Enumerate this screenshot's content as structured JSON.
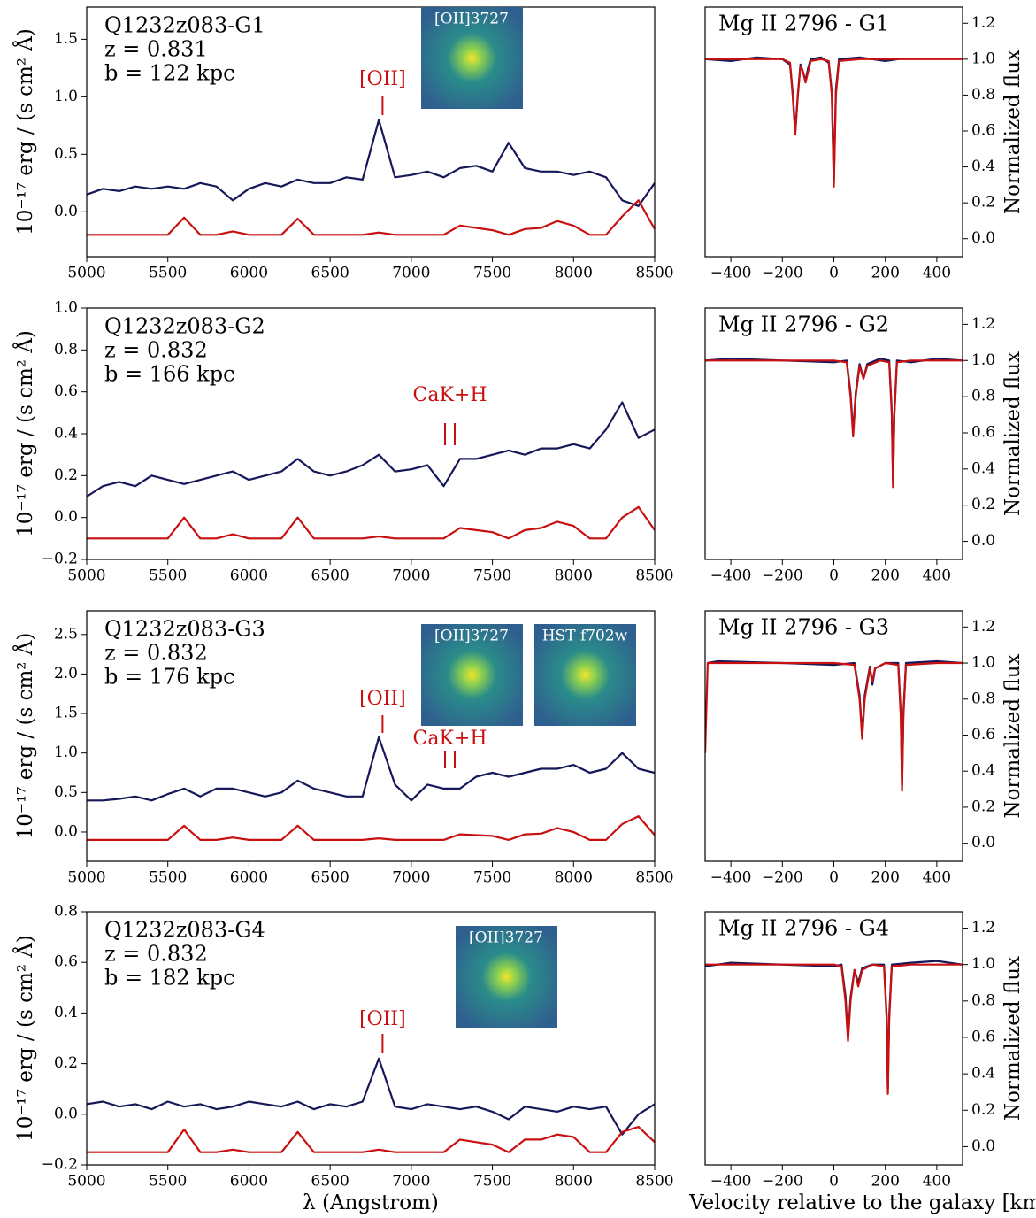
{
  "chart_data": [
    {
      "type": "line",
      "info": [
        "Q1232z083-G1",
        "z = 0.831",
        "b = 122 kpc"
      ],
      "y_label": "10⁻¹⁷ erg / (s cm² Å)",
      "annotations": [
        {
          "text": "[OII]",
          "x": [
            6823
          ]
        }
      ],
      "thumbnails": [
        {
          "label": "[OII]3727"
        }
      ],
      "x": [
        5000,
        5100,
        5200,
        5300,
        5400,
        5500,
        5600,
        5700,
        5800,
        5900,
        6000,
        6100,
        6200,
        6300,
        6400,
        6500,
        6600,
        6700,
        6800,
        6900,
        7000,
        7100,
        7200,
        7300,
        7400,
        7500,
        7600,
        7700,
        7800,
        7900,
        8000,
        8100,
        8200,
        8300,
        8400,
        8500
      ],
      "series": [
        {
          "color": "#16185a",
          "values": [
            0.15,
            0.2,
            0.18,
            0.22,
            0.2,
            0.22,
            0.2,
            0.25,
            0.22,
            0.1,
            0.2,
            0.25,
            0.22,
            0.28,
            0.25,
            0.25,
            0.3,
            0.28,
            0.8,
            0.3,
            0.32,
            0.35,
            0.3,
            0.38,
            0.4,
            0.35,
            0.6,
            0.38,
            0.35,
            0.35,
            0.32,
            0.35,
            0.3,
            0.1,
            0.05,
            0.25
          ]
        },
        {
          "color": "#c81010",
          "values": [
            -0.2,
            -0.2,
            -0.2,
            -0.2,
            -0.2,
            -0.2,
            -0.05,
            -0.2,
            -0.2,
            -0.17,
            -0.2,
            -0.2,
            -0.2,
            -0.06,
            -0.2,
            -0.2,
            -0.2,
            -0.2,
            -0.18,
            -0.2,
            -0.2,
            -0.2,
            -0.2,
            -0.12,
            -0.14,
            -0.16,
            -0.2,
            -0.15,
            -0.14,
            -0.08,
            -0.12,
            -0.2,
            -0.2,
            -0.04,
            0.1,
            -0.15
          ]
        }
      ],
      "xlim": [
        5000,
        8500
      ],
      "ylim": [
        -0.39,
        1.78
      ],
      "xticks": [
        5000,
        5500,
        6000,
        6500,
        7000,
        7500,
        8000,
        8500
      ],
      "yticks": [
        {
          "value": 0,
          "label": "0.0"
        },
        0.5,
        {
          "value": 1,
          "label": "1.0"
        },
        1.5
      ]
    },
    {
      "type": "line",
      "info": [
        "Q1232z083-G2",
        "z = 0.832",
        "b = 166 kpc"
      ],
      "y_label": "10⁻¹⁷ erg / (s cm² Å)",
      "annotations": [
        {
          "text": "CaK+H",
          "x": [
            7208,
            7268
          ]
        }
      ],
      "x": [
        5000,
        5100,
        5200,
        5300,
        5400,
        5500,
        5600,
        5700,
        5800,
        5900,
        6000,
        6100,
        6200,
        6300,
        6400,
        6500,
        6600,
        6700,
        6800,
        6900,
        7000,
        7100,
        7200,
        7300,
        7400,
        7500,
        7600,
        7700,
        7800,
        7900,
        8000,
        8100,
        8200,
        8300,
        8400,
        8500
      ],
      "series": [
        {
          "color": "#16185a",
          "values": [
            0.1,
            0.15,
            0.17,
            0.15,
            0.2,
            0.18,
            0.16,
            0.18,
            0.2,
            0.22,
            0.18,
            0.2,
            0.22,
            0.28,
            0.22,
            0.2,
            0.22,
            0.25,
            0.3,
            0.22,
            0.23,
            0.25,
            0.15,
            0.28,
            0.28,
            0.3,
            0.32,
            0.3,
            0.33,
            0.33,
            0.35,
            0.33,
            0.42,
            0.55,
            0.38,
            0.42
          ]
        },
        {
          "color": "#c81010",
          "values": [
            -0.1,
            -0.1,
            -0.1,
            -0.1,
            -0.1,
            -0.1,
            0.0,
            -0.1,
            -0.1,
            -0.08,
            -0.1,
            -0.1,
            -0.1,
            0.0,
            -0.1,
            -0.1,
            -0.1,
            -0.1,
            -0.09,
            -0.1,
            -0.1,
            -0.1,
            -0.1,
            -0.05,
            -0.06,
            -0.07,
            -0.1,
            -0.06,
            -0.05,
            -0.02,
            -0.04,
            -0.1,
            -0.1,
            0.0,
            0.05,
            -0.06
          ]
        }
      ],
      "xlim": [
        5000,
        8500
      ],
      "ylim": [
        -0.2,
        1.0
      ],
      "xticks": [
        5000,
        5500,
        6000,
        6500,
        7000,
        7500,
        8000,
        8500
      ],
      "yticks": [
        {
          "value": -0.2,
          "label": "−0.2"
        },
        {
          "value": 0,
          "label": "0.0"
        },
        0.2,
        0.4,
        0.6,
        0.8,
        {
          "value": 1,
          "label": "1.0"
        }
      ]
    },
    {
      "type": "line",
      "info": [
        "Q1232z083-G3",
        "z = 0.832",
        "b = 176 kpc"
      ],
      "y_label": "10⁻¹⁷ erg / (s cm² Å)",
      "annotations": [
        {
          "text": "[OII]",
          "x": [
            6823
          ]
        },
        {
          "text": "CaK+H",
          "x": [
            7208,
            7268
          ]
        }
      ],
      "thumbnails": [
        {
          "label": "[OII]3727"
        },
        {
          "label": "HST f702w"
        }
      ],
      "x": [
        5000,
        5100,
        5200,
        5300,
        5400,
        5500,
        5600,
        5700,
        5800,
        5900,
        6000,
        6100,
        6200,
        6300,
        6400,
        6500,
        6600,
        6700,
        6800,
        6900,
        7000,
        7100,
        7200,
        7300,
        7400,
        7500,
        7600,
        7700,
        7800,
        7900,
        8000,
        8100,
        8200,
        8300,
        8400,
        8500
      ],
      "series": [
        {
          "color": "#16185a",
          "values": [
            0.4,
            0.4,
            0.42,
            0.45,
            0.4,
            0.48,
            0.55,
            0.45,
            0.55,
            0.55,
            0.5,
            0.45,
            0.5,
            0.65,
            0.55,
            0.5,
            0.45,
            0.45,
            1.2,
            0.6,
            0.4,
            0.6,
            0.55,
            0.55,
            0.7,
            0.75,
            0.7,
            0.75,
            0.8,
            0.8,
            0.85,
            0.75,
            0.8,
            1.0,
            0.8,
            0.75
          ]
        },
        {
          "color": "#c81010",
          "values": [
            -0.1,
            -0.1,
            -0.1,
            -0.1,
            -0.1,
            -0.1,
            0.08,
            -0.1,
            -0.1,
            -0.07,
            -0.1,
            -0.1,
            -0.1,
            0.08,
            -0.1,
            -0.1,
            -0.1,
            -0.1,
            -0.08,
            -0.1,
            -0.1,
            -0.1,
            -0.1,
            -0.03,
            -0.04,
            -0.05,
            -0.1,
            -0.03,
            -0.02,
            0.05,
            0.0,
            -0.1,
            -0.1,
            0.1,
            0.2,
            -0.04
          ]
        }
      ],
      "xlim": [
        5000,
        8500
      ],
      "ylim": [
        -0.37,
        2.8
      ],
      "xticks": [
        5000,
        5500,
        6000,
        6500,
        7000,
        7500,
        8000,
        8500
      ],
      "yticks": [
        {
          "value": 0,
          "label": "0.0"
        },
        0.5,
        {
          "value": 1,
          "label": "1.0"
        },
        1.5,
        {
          "value": 2,
          "label": "2.0"
        },
        2.5
      ]
    },
    {
      "type": "line",
      "info": [
        "Q1232z083-G4",
        "z = 0.832",
        "b = 182 kpc"
      ],
      "y_label": "10⁻¹⁷ erg / (s cm² Å)",
      "x_label": "λ (Angstrom)",
      "annotations": [
        {
          "text": "[OII]",
          "x": [
            6823
          ]
        }
      ],
      "thumbnails": [
        {
          "label": "[OII]3727"
        }
      ],
      "x": [
        5000,
        5100,
        5200,
        5300,
        5400,
        5500,
        5600,
        5700,
        5800,
        5900,
        6000,
        6100,
        6200,
        6300,
        6400,
        6500,
        6600,
        6700,
        6800,
        6900,
        7000,
        7100,
        7200,
        7300,
        7400,
        7500,
        7600,
        7700,
        7800,
        7900,
        8000,
        8100,
        8200,
        8300,
        8400,
        8500
      ],
      "series": [
        {
          "color": "#16185a",
          "values": [
            0.04,
            0.05,
            0.03,
            0.04,
            0.02,
            0.05,
            0.03,
            0.04,
            0.02,
            0.03,
            0.05,
            0.04,
            0.03,
            0.05,
            0.02,
            0.04,
            0.03,
            0.05,
            0.22,
            0.03,
            0.02,
            0.04,
            0.03,
            0.02,
            0.03,
            0.01,
            -0.02,
            0.03,
            0.02,
            0.01,
            0.03,
            0.02,
            0.03,
            -0.08,
            0.0,
            0.04
          ]
        },
        {
          "color": "#c81010",
          "values": [
            -0.15,
            -0.15,
            -0.15,
            -0.15,
            -0.15,
            -0.15,
            -0.06,
            -0.15,
            -0.15,
            -0.14,
            -0.15,
            -0.15,
            -0.15,
            -0.07,
            -0.15,
            -0.15,
            -0.15,
            -0.15,
            -0.14,
            -0.15,
            -0.15,
            -0.15,
            -0.15,
            -0.1,
            -0.11,
            -0.12,
            -0.15,
            -0.1,
            -0.1,
            -0.08,
            -0.09,
            -0.15,
            -0.15,
            -0.07,
            -0.05,
            -0.11
          ]
        }
      ],
      "xlim": [
        5000,
        8500
      ],
      "ylim": [
        -0.2,
        0.8
      ],
      "xticks": [
        5000,
        5500,
        6000,
        6500,
        7000,
        7500,
        8000,
        8500
      ],
      "yticks": [
        {
          "value": -0.2,
          "label": "−0.2"
        },
        {
          "value": 0,
          "label": "0.0"
        },
        0.2,
        0.4,
        0.6,
        0.8
      ]
    },
    {
      "type": "line",
      "title": "Mg II 2796 - G1",
      "y_label": "Normalized flux",
      "x": [
        -500,
        -400,
        -300,
        -200,
        -170,
        -160,
        -150,
        -140,
        -130,
        -120,
        -110,
        -100,
        -90,
        -50,
        -20,
        -8,
        0,
        8,
        20,
        100,
        200,
        250,
        300,
        400,
        500
      ],
      "series": [
        {
          "color": "#16185a",
          "values": [
            1.0,
            0.99,
            1.01,
            1.0,
            0.97,
            0.82,
            0.6,
            0.8,
            0.97,
            0.93,
            0.88,
            0.95,
            1.0,
            1.01,
            0.98,
            0.82,
            0.32,
            0.83,
            1.0,
            1.01,
            0.99,
            1.0,
            null,
            null,
            null
          ]
        },
        {
          "color": "#c81010",
          "values": [
            1,
            1,
            1,
            1,
            0.98,
            0.8,
            0.58,
            0.8,
            0.96,
            0.93,
            0.87,
            0.93,
            0.99,
            1,
            0.99,
            0.8,
            0.29,
            0.8,
            0.99,
            1,
            1,
            1,
            1,
            1,
            1
          ]
        }
      ],
      "xlim": [
        -500,
        500
      ],
      "ylim": [
        -0.1,
        1.29
      ],
      "xticks": [
        {
          "value": -400,
          "label": "−400"
        },
        {
          "value": -200,
          "label": "−200"
        },
        0,
        200,
        400
      ],
      "yticks": [
        {
          "value": 0,
          "label": "0.0"
        },
        0.2,
        0.4,
        0.6,
        0.8,
        {
          "value": 1,
          "label": "1.0"
        },
        1.2
      ]
    },
    {
      "type": "line",
      "title": "Mg II 2796 - G2",
      "y_label": "Normalized flux",
      "x": [
        -500,
        -400,
        -200,
        0,
        50,
        65,
        75,
        85,
        100,
        115,
        130,
        180,
        215,
        225,
        230,
        235,
        245,
        300,
        400,
        500
      ],
      "series": [
        {
          "color": "#16185a",
          "values": [
            1,
            1.01,
            1.0,
            0.99,
            1.0,
            0.82,
            0.6,
            0.82,
            0.98,
            0.9,
            0.98,
            1.01,
            1,
            0.72,
            0.33,
            0.7,
            1.0,
            0.99,
            1.01,
            1.0
          ]
        },
        {
          "color": "#c81010",
          "values": [
            1,
            1,
            1,
            1,
            0.99,
            0.8,
            0.58,
            0.8,
            0.97,
            0.9,
            0.97,
            1,
            0.99,
            0.7,
            0.3,
            0.7,
            0.99,
            1,
            1,
            1
          ]
        }
      ],
      "xlim": [
        -500,
        500
      ],
      "ylim": [
        -0.1,
        1.29
      ],
      "xticks": [
        {
          "value": -400,
          "label": "−400"
        },
        {
          "value": -200,
          "label": "−200"
        },
        0,
        200,
        400
      ],
      "yticks": [
        {
          "value": 0,
          "label": "0.0"
        },
        0.2,
        0.4,
        0.6,
        0.8,
        {
          "value": 1,
          "label": "1.0"
        },
        1.2
      ]
    },
    {
      "type": "line",
      "title": "Mg II 2796 - G3",
      "y_label": "Normalized flux",
      "x": [
        -500,
        -490,
        -450,
        -200,
        0,
        80,
        100,
        110,
        120,
        140,
        150,
        160,
        200,
        250,
        260,
        265,
        270,
        280,
        400,
        500
      ],
      "series": [
        {
          "color": "#16185a",
          "values": [
            null,
            1.0,
            1.01,
            1.0,
            0.99,
            1.0,
            0.82,
            0.6,
            0.82,
            0.98,
            0.88,
            0.97,
            1.0,
            1.0,
            0.72,
            0.32,
            0.72,
            1.0,
            1.01,
            1.0
          ]
        },
        {
          "color": "#c81010",
          "values": [
            0.5,
            1,
            1,
            1,
            1,
            0.99,
            0.8,
            0.58,
            0.8,
            0.97,
            0.9,
            0.97,
            1,
            0.99,
            0.7,
            0.29,
            0.7,
            0.99,
            1,
            1
          ]
        }
      ],
      "xlim": [
        -500,
        500
      ],
      "ylim": [
        -0.1,
        1.29
      ],
      "xticks": [
        {
          "value": -400,
          "label": "−400"
        },
        {
          "value": -200,
          "label": "−200"
        },
        0,
        200,
        400
      ],
      "yticks": [
        {
          "value": 0,
          "label": "0.0"
        },
        0.2,
        0.4,
        0.6,
        0.8,
        {
          "value": 1,
          "label": "1.0"
        },
        1.2
      ]
    },
    {
      "type": "line",
      "title": "Mg II 2796 - G4",
      "y_label": "Normalized flux",
      "x_label": "Velocity relative to the galaxy [km/s]",
      "x": [
        -500,
        -400,
        -200,
        0,
        30,
        45,
        55,
        65,
        80,
        95,
        110,
        150,
        195,
        205,
        210,
        215,
        225,
        300,
        400,
        500
      ],
      "series": [
        {
          "color": "#16185a",
          "values": [
            0.99,
            1.01,
            1.0,
            0.99,
            1.0,
            0.83,
            0.6,
            0.82,
            0.97,
            0.9,
            0.98,
            1.0,
            1.0,
            0.72,
            0.32,
            0.72,
            1.0,
            1.01,
            1.02,
            1.0
          ]
        },
        {
          "color": "#c81010",
          "values": [
            1,
            1,
            1,
            1,
            0.99,
            0.8,
            0.58,
            0.8,
            0.97,
            0.88,
            0.97,
            1,
            0.99,
            0.7,
            0.29,
            0.7,
            0.99,
            1,
            1,
            1
          ]
        }
      ],
      "xlim": [
        -500,
        500
      ],
      "ylim": [
        -0.1,
        1.29
      ],
      "xticks": [
        {
          "value": -400,
          "label": "−400"
        },
        {
          "value": -200,
          "label": "−200"
        },
        0,
        200,
        400
      ],
      "yticks": [
        {
          "value": 0,
          "label": "0.0"
        },
        0.2,
        0.4,
        0.6,
        0.8,
        {
          "value": 1,
          "label": "1.0"
        },
        1.2
      ]
    }
  ]
}
